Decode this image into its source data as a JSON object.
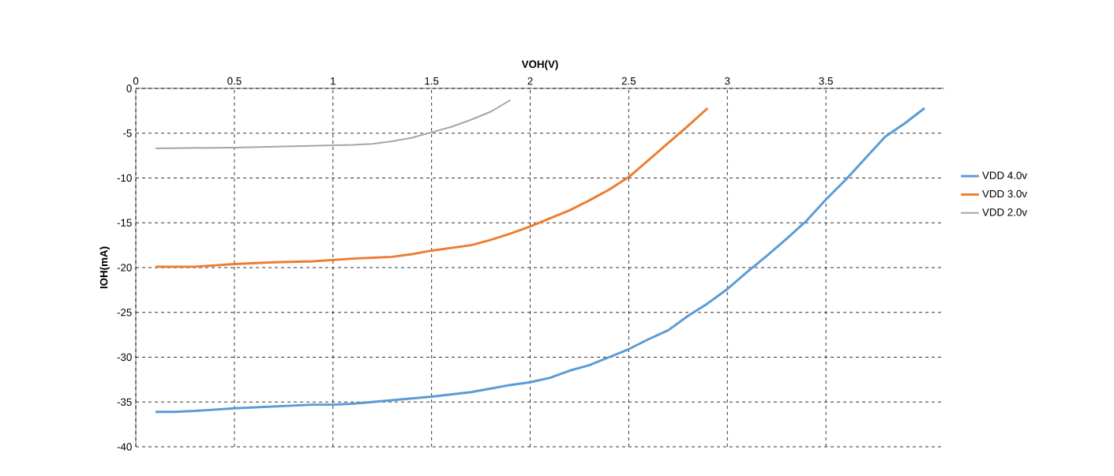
{
  "chart_data": {
    "type": "line",
    "xlabel": "VOH(V)",
    "ylabel": "IOH(mA)",
    "xlim": [
      0,
      4.1
    ],
    "xticks": [
      0,
      0.5,
      1,
      1.5,
      2,
      2.5,
      3,
      3.5
    ],
    "ylim": [
      -40,
      0
    ],
    "yticks": [
      0,
      -5,
      -10,
      -15,
      -20,
      -25,
      -30,
      -35,
      -40
    ],
    "grid": true,
    "legend": "right",
    "marker": "none",
    "series": [
      {
        "name": "VDD 4.0v",
        "color": "#5b9bd5",
        "x": [
          0.1,
          0.2,
          0.3,
          0.5,
          0.7,
          0.9,
          1.0,
          1.1,
          1.2,
          1.4,
          1.5,
          1.7,
          1.8,
          1.9,
          2.0,
          2.1,
          2.2,
          2.3,
          2.4,
          2.5,
          2.6,
          2.7,
          2.8,
          2.9,
          3.0,
          3.1,
          3.2,
          3.3,
          3.4,
          3.5,
          3.6,
          3.7,
          3.8,
          3.9,
          4.0
        ],
        "values": [
          -36.1,
          -36.1,
          -36.0,
          -35.7,
          -35.5,
          -35.3,
          -35.3,
          -35.2,
          -35.0,
          -34.6,
          -34.4,
          -33.9,
          -33.5,
          -33.1,
          -32.8,
          -32.3,
          -31.5,
          -30.9,
          -30.0,
          -29.1,
          -28.0,
          -27.0,
          -25.4,
          -24.0,
          -22.4,
          -20.5,
          -18.7,
          -16.8,
          -14.8,
          -12.4,
          -10.2,
          -7.8,
          -5.4,
          -3.9,
          -2.2
        ]
      },
      {
        "name": "VDD 3.0v",
        "color": "#ed7d31",
        "x": [
          0.1,
          0.3,
          0.5,
          0.7,
          0.9,
          1.1,
          1.2,
          1.3,
          1.4,
          1.5,
          1.7,
          1.8,
          1.9,
          2.0,
          2.1,
          2.2,
          2.3,
          2.4,
          2.5,
          2.6,
          2.7,
          2.8,
          2.9
        ],
        "values": [
          -19.9,
          -19.9,
          -19.6,
          -19.4,
          -19.3,
          -19.0,
          -18.9,
          -18.8,
          -18.5,
          -18.1,
          -17.5,
          -16.9,
          -16.2,
          -15.4,
          -14.5,
          -13.6,
          -12.5,
          -11.3,
          -9.9,
          -8.0,
          -6.1,
          -4.2,
          -2.2
        ]
      },
      {
        "name": "VDD 2.0v",
        "color": "#a5a5a5",
        "x": [
          0.1,
          0.5,
          0.9,
          1.1,
          1.2,
          1.3,
          1.4,
          1.5,
          1.6,
          1.7,
          1.8,
          1.9
        ],
        "values": [
          -6.7,
          -6.6,
          -6.4,
          -6.3,
          -6.2,
          -5.9,
          -5.5,
          -4.9,
          -4.3,
          -3.5,
          -2.6,
          -1.3
        ]
      }
    ]
  }
}
